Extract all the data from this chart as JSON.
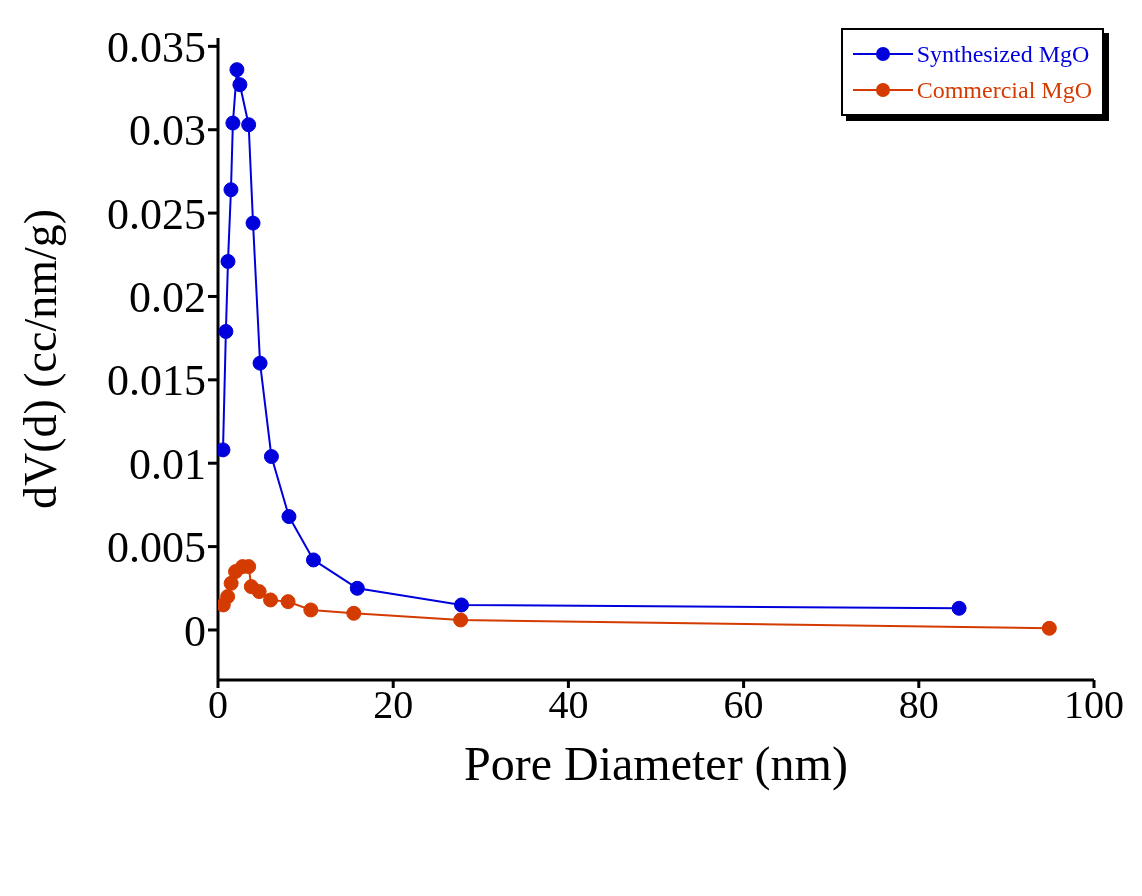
{
  "chart_data": {
    "type": "line",
    "xlabel": "Pore Diameter (nm)",
    "ylabel": "dV(d) (cc/nm/g)",
    "xlim": [
      0,
      100
    ],
    "xticks": [
      0,
      20,
      40,
      60,
      80,
      100
    ],
    "ylim": [
      -0.003,
      0.0355
    ],
    "yticks": [
      0,
      0.005,
      0.01,
      0.015,
      0.02,
      0.025,
      0.03,
      0.035
    ],
    "grid": false,
    "legend": "top right",
    "marker": "circle",
    "line_style": "solid",
    "series": [
      {
        "name": "Synthesized MgO",
        "color": "#0000dd",
        "x": [
          0.57,
          0.9,
          1.14,
          1.48,
          1.7,
          2.16,
          2.5,
          3.5,
          4.0,
          4.8,
          6.1,
          8.1,
          10.9,
          15.9,
          27.8,
          84.6
        ],
        "values": [
          0.0108,
          0.0179,
          0.0221,
          0.0264,
          0.0304,
          0.0336,
          0.0327,
          0.0303,
          0.0244,
          0.016,
          0.0104,
          0.0068,
          0.0042,
          0.0025,
          0.0015,
          0.0013
        ]
      },
      {
        "name": "Commercial MgO",
        "color": "#d43b00",
        "x": [
          0.6,
          1.1,
          1.5,
          2.0,
          2.8,
          3.5,
          3.8,
          4.7,
          6.0,
          8.0,
          10.6,
          15.5,
          27.7,
          94.9
        ],
        "values": [
          0.0015,
          0.002,
          0.0028,
          0.0035,
          0.0038,
          0.0038,
          0.0026,
          0.0023,
          0.0018,
          0.0017,
          0.0012,
          0.001,
          0.0006,
          0.0001
        ]
      }
    ]
  }
}
